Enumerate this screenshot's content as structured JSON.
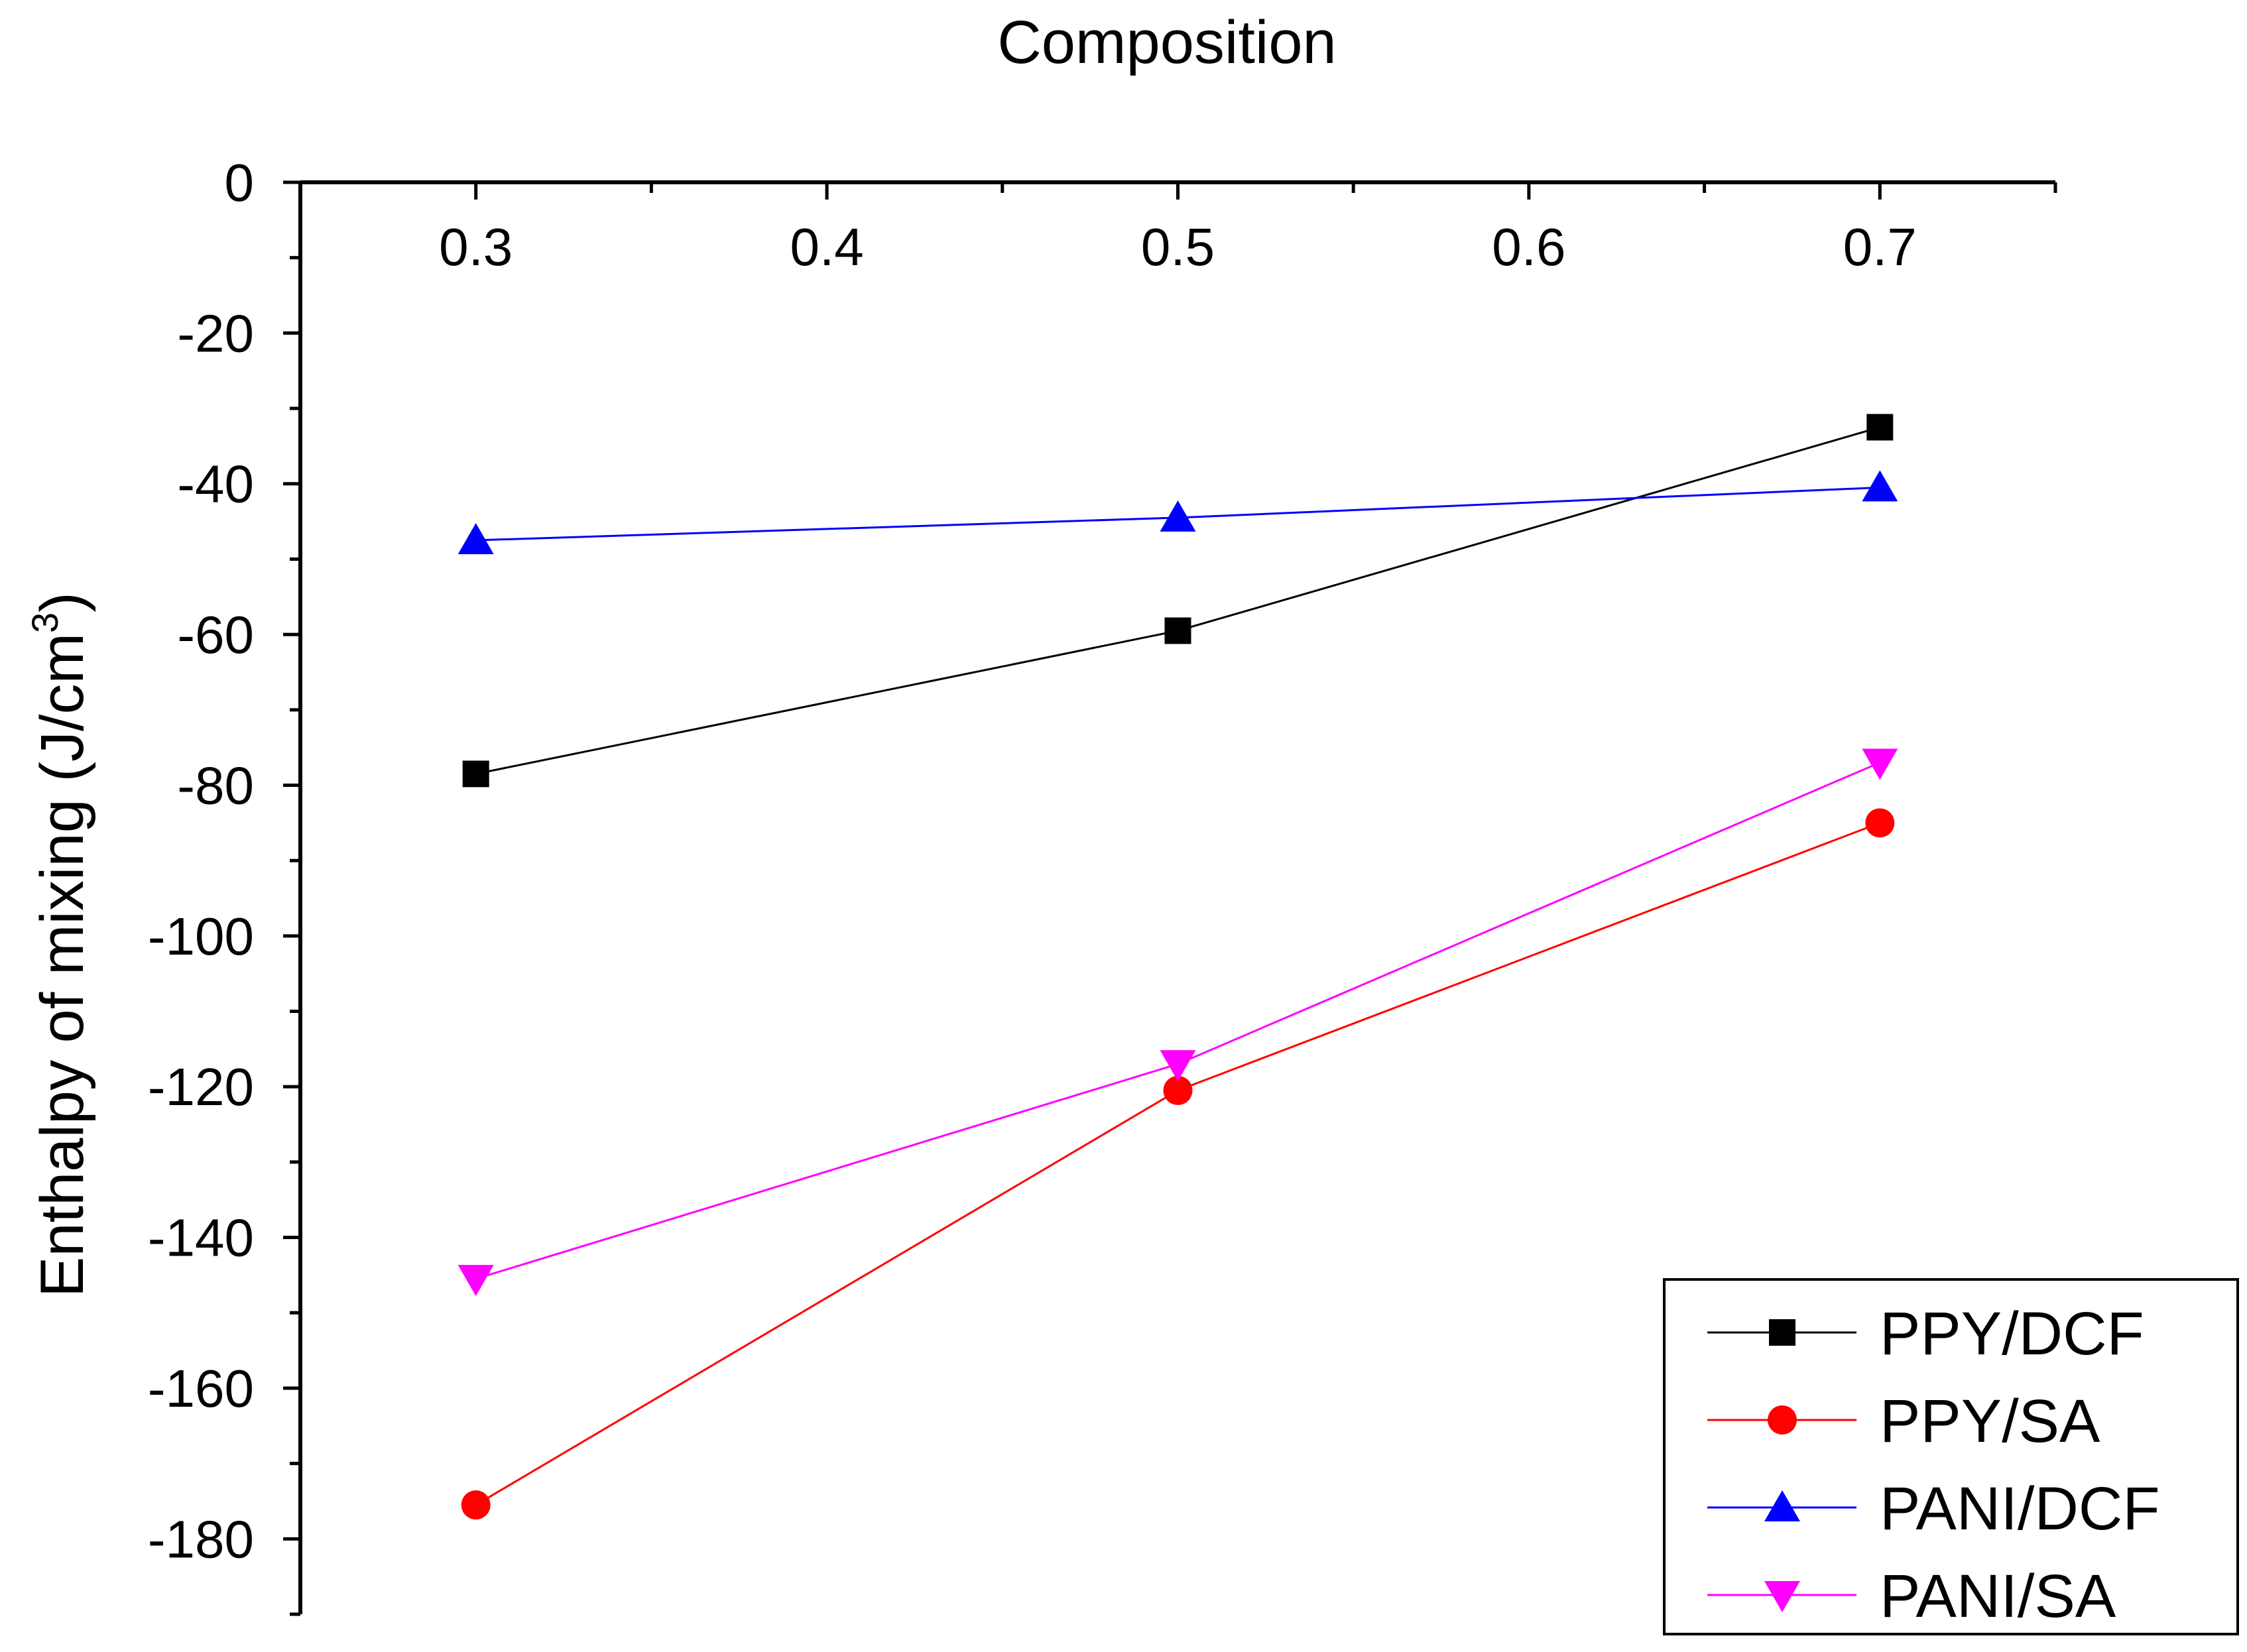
{
  "chart_data": {
    "type": "line",
    "xlabel": "Composition",
    "ylabel_main": "Enthalpy of mixing (J/cm",
    "ylabel_sup": "3",
    "ylabel_close": ")",
    "xlim": [
      0.25,
      0.75
    ],
    "ylim": [
      -190,
      0
    ],
    "x_ticks": [
      0.3,
      0.4,
      0.5,
      0.6,
      0.7
    ],
    "x_tick_labels": [
      "0.3",
      "0.4",
      "0.5",
      "0.6",
      "0.7"
    ],
    "y_ticks": [
      0,
      -20,
      -40,
      -60,
      -80,
      -100,
      -120,
      -140,
      -160,
      -180
    ],
    "y_tick_labels": [
      "0",
      "-20",
      "-40",
      "-60",
      "-80",
      "-100",
      "-120",
      "-140",
      "-160",
      "-180"
    ],
    "x_axis_position": "top",
    "legend_position": "bottom-right",
    "series": [
      {
        "name": "PPY/DCF",
        "marker": "square",
        "color": "#000000",
        "x": [
          0.3,
          0.5,
          0.7
        ],
        "values": [
          -78.5,
          -59.5,
          -32.5
        ]
      },
      {
        "name": "PPY/SA",
        "marker": "circle",
        "color": "#ff0000",
        "x": [
          0.3,
          0.5,
          0.7
        ],
        "values": [
          -175.5,
          -120.5,
          -85
        ]
      },
      {
        "name": "PANI/DCF",
        "marker": "triangle-up",
        "color": "#0000ff",
        "x": [
          0.3,
          0.5,
          0.7
        ],
        "values": [
          -47.5,
          -44.5,
          -40.5
        ]
      },
      {
        "name": "PANI/SA",
        "marker": "triangle-down",
        "color": "#ff00ff",
        "x": [
          0.3,
          0.5,
          0.7
        ],
        "values": [
          -145.5,
          -117,
          -77
        ]
      }
    ]
  }
}
